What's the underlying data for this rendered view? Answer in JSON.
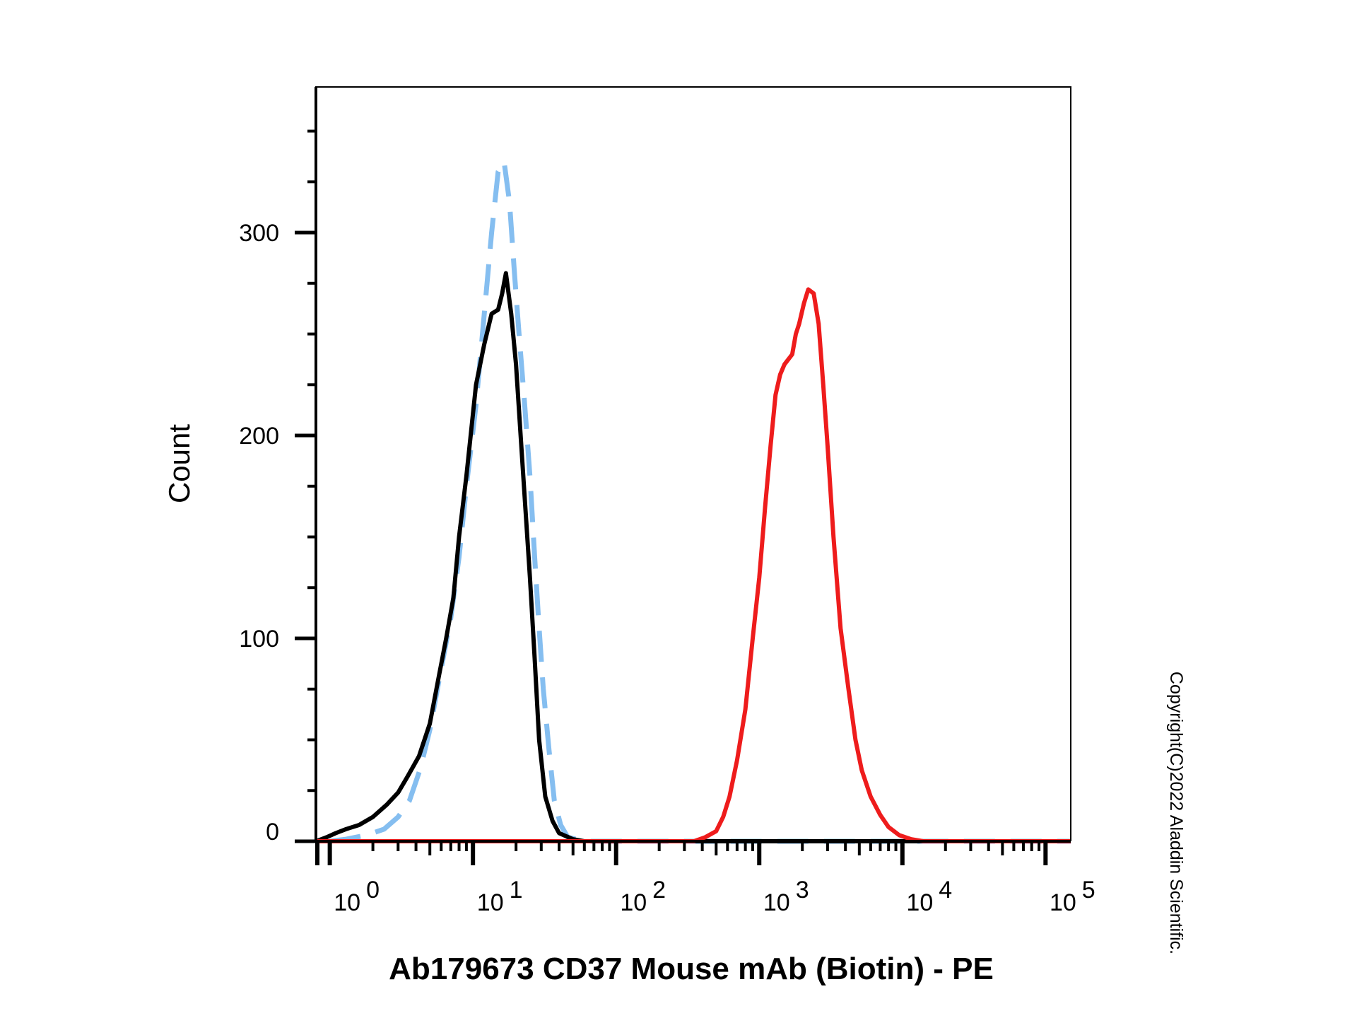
{
  "chart_data": {
    "type": "line",
    "title": "",
    "xlabel": "Ab179673 CD37 Mouse mAb (Biotin) - PE",
    "ylabel": "Count",
    "xscale": "log",
    "xlim": [
      0.8,
      150000
    ],
    "ylim": [
      0,
      370
    ],
    "grid": false,
    "legend": "none",
    "x_ticks": [
      {
        "value": 1,
        "base": "10",
        "exp": "0"
      },
      {
        "value": 10,
        "base": "10",
        "exp": "1"
      },
      {
        "value": 100,
        "base": "10",
        "exp": "2"
      },
      {
        "value": 1000,
        "base": "10",
        "exp": "3"
      },
      {
        "value": 10000,
        "base": "10",
        "exp": "4"
      },
      {
        "value": 100000,
        "base": "10",
        "exp": "5"
      }
    ],
    "y_ticks": [
      0,
      100,
      200,
      300
    ],
    "series": [
      {
        "color": "#000000",
        "dash": "solid",
        "points": [
          [
            0.8,
            0
          ],
          [
            0.95,
            2
          ],
          [
            1.1,
            4
          ],
          [
            1.3,
            6
          ],
          [
            1.6,
            8
          ],
          [
            2.0,
            12
          ],
          [
            2.5,
            18
          ],
          [
            3.0,
            24
          ],
          [
            3.5,
            32
          ],
          [
            4.2,
            42
          ],
          [
            5.0,
            58
          ],
          [
            5.8,
            82
          ],
          [
            6.5,
            100
          ],
          [
            7.3,
            120
          ],
          [
            8.0,
            150
          ],
          [
            9.0,
            180
          ],
          [
            10.5,
            225
          ],
          [
            12.0,
            245
          ],
          [
            13.5,
            260
          ],
          [
            15.0,
            262
          ],
          [
            16.0,
            270
          ],
          [
            17.0,
            280
          ],
          [
            18.5,
            260
          ],
          [
            20.0,
            235
          ],
          [
            22.0,
            190
          ],
          [
            25.0,
            130
          ],
          [
            27.0,
            90
          ],
          [
            29.0,
            50
          ],
          [
            32.0,
            22
          ],
          [
            36.0,
            10
          ],
          [
            40.0,
            4
          ],
          [
            50.0,
            1
          ],
          [
            60.0,
            0
          ],
          [
            200000,
            0
          ]
        ]
      },
      {
        "color": "#85bef0",
        "dash": "dashed",
        "points": [
          [
            1.0,
            0
          ],
          [
            1.3,
            1
          ],
          [
            1.8,
            3
          ],
          [
            2.4,
            6
          ],
          [
            3.0,
            12
          ],
          [
            3.6,
            20
          ],
          [
            4.3,
            36
          ],
          [
            5.0,
            55
          ],
          [
            6.0,
            85
          ],
          [
            7.0,
            110
          ],
          [
            8.0,
            140
          ],
          [
            9.0,
            175
          ],
          [
            10.5,
            215
          ],
          [
            12.0,
            260
          ],
          [
            13.5,
            300
          ],
          [
            15.0,
            330
          ],
          [
            16.5,
            335
          ],
          [
            18.0,
            315
          ],
          [
            19.5,
            280
          ],
          [
            21.0,
            250
          ],
          [
            23.0,
            215
          ],
          [
            25.0,
            180
          ],
          [
            27.0,
            140
          ],
          [
            29.0,
            105
          ],
          [
            31.0,
            75
          ],
          [
            34.0,
            45
          ],
          [
            37.0,
            20
          ],
          [
            41.0,
            8
          ],
          [
            46.0,
            2
          ],
          [
            60.0,
            0
          ],
          [
            200000,
            0
          ]
        ]
      },
      {
        "color": "#ee1c1c",
        "dash": "solid",
        "points": [
          [
            0.8,
            0
          ],
          [
            350,
            0
          ],
          [
            420,
            2
          ],
          [
            500,
            5
          ],
          [
            560,
            12
          ],
          [
            620,
            22
          ],
          [
            700,
            40
          ],
          [
            800,
            65
          ],
          [
            900,
            100
          ],
          [
            1000,
            130
          ],
          [
            1100,
            165
          ],
          [
            1200,
            195
          ],
          [
            1300,
            220
          ],
          [
            1400,
            230
          ],
          [
            1500,
            235
          ],
          [
            1700,
            240
          ],
          [
            1800,
            250
          ],
          [
            1900,
            255
          ],
          [
            2050,
            265
          ],
          [
            2200,
            272
          ],
          [
            2400,
            270
          ],
          [
            2600,
            255
          ],
          [
            2800,
            225
          ],
          [
            3000,
            195
          ],
          [
            3300,
            150
          ],
          [
            3700,
            105
          ],
          [
            4200,
            75
          ],
          [
            4700,
            50
          ],
          [
            5200,
            35
          ],
          [
            6000,
            22
          ],
          [
            7000,
            13
          ],
          [
            8000,
            7
          ],
          [
            9500,
            3
          ],
          [
            11500,
            1
          ],
          [
            14000,
            0
          ],
          [
            200000,
            0
          ]
        ]
      }
    ]
  },
  "copyright": "Copyright(C)2022 Aladdin Scientific."
}
